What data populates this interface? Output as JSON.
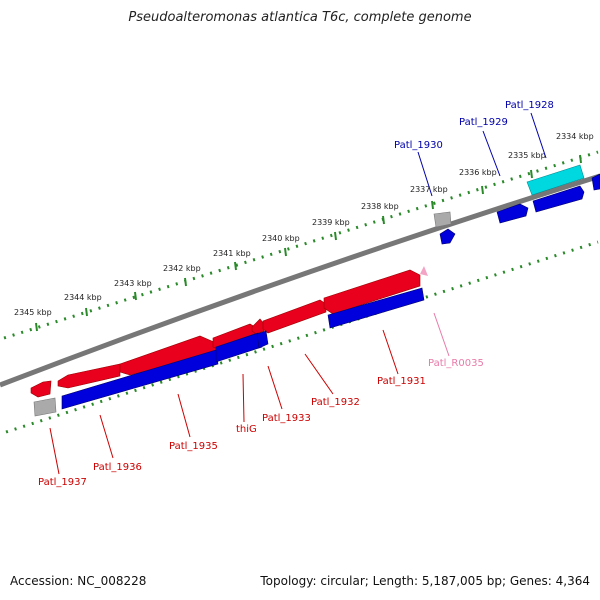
{
  "title": "Pseudoalteromonas atlantica T6c, complete genome",
  "footer": {
    "accession": "Accession: NC_008228",
    "stats": "Topology: circular; Length: 5,187,005 bp; Genes: 4,364"
  },
  "colors": {
    "forward": "#e8001c",
    "reverse": "#0000dd",
    "rna": "#f3a3c4",
    "pseudo": "#aaaaaa",
    "other": "#00d8e0",
    "tick": "#2a8a2a",
    "backbone": "#777777"
  },
  "kbp_labels": [
    "2345 kbp",
    "2344 kbp",
    "2343 kbp",
    "2342 kbp",
    "2341 kbp",
    "2340 kbp",
    "2339 kbp",
    "2338 kbp",
    "2337 kbp",
    "2336 kbp",
    "2335 kbp",
    "2334 kbp"
  ],
  "gene_labels": [
    {
      "text": "Patl_1928",
      "color": "#0000aa"
    },
    {
      "text": "Patl_1929",
      "color": "#0000aa"
    },
    {
      "text": "Patl_1930",
      "color": "#0000aa"
    },
    {
      "text": "Patl_R0035",
      "color": "#e87aa8"
    },
    {
      "text": "Patl_1931",
      "color": "#cc0000"
    },
    {
      "text": "Patl_1932",
      "color": "#cc0000"
    },
    {
      "text": "Patl_1933",
      "color": "#cc0000"
    },
    {
      "text": "thiG",
      "color": "#cc0000"
    },
    {
      "text": "Patl_1935",
      "color": "#cc0000"
    },
    {
      "text": "Patl_1936",
      "color": "#cc0000"
    },
    {
      "text": "Patl_1937",
      "color": "#cc0000"
    }
  ]
}
